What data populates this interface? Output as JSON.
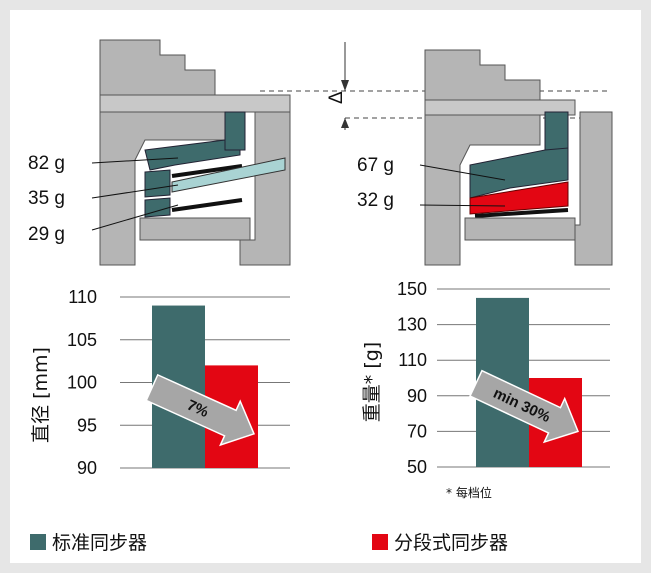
{
  "colors": {
    "standard": "#3e6b6c",
    "segment": "#e30613",
    "arrow": "#a6a6a6",
    "housing": "#b5b5b5",
    "light_blue": "#a9d3d3"
  },
  "left_diagram": {
    "labels": [
      "82 g",
      "35 g",
      "29 g"
    ]
  },
  "right_diagram": {
    "labels": [
      "67 g",
      "32 g"
    ],
    "delta_symbol": "Δ"
  },
  "chart_data": [
    {
      "type": "bar",
      "ylabel": "直径 [mm]",
      "yticks": [
        "110",
        "105",
        "100",
        "95",
        "90"
      ],
      "ylim": [
        90,
        110
      ],
      "series": [
        {
          "name": "标准同步器",
          "values": [
            109
          ]
        },
        {
          "name": "分段式同步器",
          "values": [
            102
          ]
        }
      ],
      "arrow_label": "7%"
    },
    {
      "type": "bar",
      "ylabel": "重量* [g]",
      "yticks": [
        "150",
        "130",
        "110",
        "90",
        "70",
        "50"
      ],
      "ylim": [
        50,
        150
      ],
      "series": [
        {
          "name": "标准同步器",
          "values": [
            145
          ]
        },
        {
          "name": "分段式同步器",
          "values": [
            100
          ]
        }
      ],
      "arrow_label": "min 30%",
      "footnote": "* 每档位"
    }
  ],
  "legend": {
    "standard": "标准同步器",
    "segment": "分段式同步器"
  }
}
